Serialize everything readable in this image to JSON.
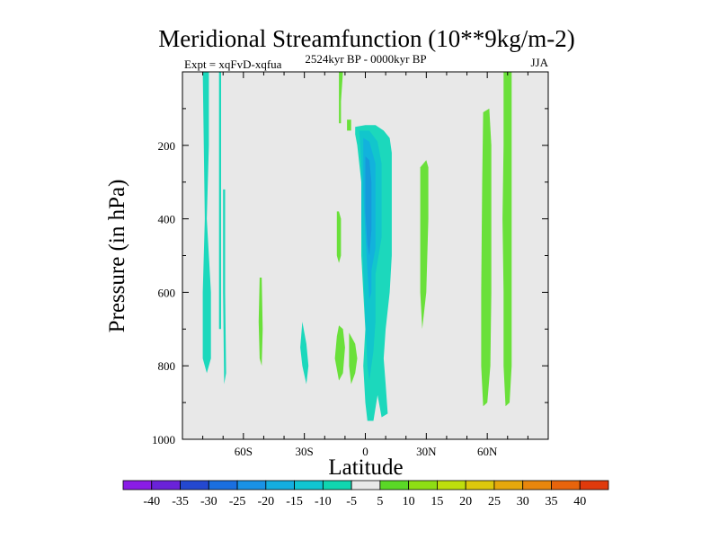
{
  "chart_data": {
    "type": "filled-contour",
    "title": "Meridional Streamfunction (10**9kg/m-2)",
    "left_string": "Expt = xqFvD-xqfua",
    "center_string": "2524kyr BP - 0000kyr BP",
    "right_string": "JJA",
    "xlabel": "Latitude",
    "ylabel": "Pressure (in hPa)",
    "xlim": [
      -90,
      90
    ],
    "ylim": [
      1000,
      0
    ],
    "x_ticks": [
      {
        "value": -60,
        "label": "60S"
      },
      {
        "value": -30,
        "label": "30S"
      },
      {
        "value": 0,
        "label": "0"
      },
      {
        "value": 30,
        "label": "30N"
      },
      {
        "value": 60,
        "label": "60N"
      }
    ],
    "y_ticks": [
      {
        "value": 200,
        "label": "200"
      },
      {
        "value": 400,
        "label": "400"
      },
      {
        "value": 600,
        "label": "600"
      },
      {
        "value": 800,
        "label": "800"
      },
      {
        "value": 1000,
        "label": "1000"
      }
    ],
    "background_color": "#e8e8e8",
    "contour_regions": [
      {
        "name": "sh-polar-tower",
        "level": -5,
        "points": [
          [
            -80,
            0
          ],
          [
            -77,
            0
          ],
          [
            -77,
            200
          ],
          [
            -78,
            400
          ],
          [
            -76,
            600
          ],
          [
            -76,
            780
          ],
          [
            -78,
            820
          ],
          [
            -80,
            780
          ],
          [
            -80,
            600
          ],
          [
            -79,
            400
          ]
        ]
      },
      {
        "name": "sh-polar-strip",
        "level": -5,
        "points": [
          [
            -72,
            0
          ],
          [
            -71,
            0
          ],
          [
            -71,
            200
          ],
          [
            -71,
            400
          ],
          [
            -71,
            700
          ],
          [
            -72,
            700
          ],
          [
            -72,
            400
          ],
          [
            -72,
            200
          ]
        ]
      },
      {
        "name": "sh-strip-b",
        "level": -5,
        "points": [
          [
            -70,
            320
          ],
          [
            -69,
            320
          ],
          [
            -69,
            600
          ],
          [
            -68.5,
            820
          ],
          [
            -69.5,
            850
          ],
          [
            -70,
            600
          ]
        ]
      },
      {
        "name": "sh-small-positive",
        "level": 5,
        "points": [
          [
            -52,
            560
          ],
          [
            -51,
            560
          ],
          [
            -50.5,
            700
          ],
          [
            -51,
            800
          ],
          [
            -52,
            780
          ],
          [
            -52.5,
            680
          ]
        ]
      },
      {
        "name": "sh-30s-cell",
        "level": -5,
        "points": [
          [
            -31,
            680
          ],
          [
            -29,
            740
          ],
          [
            -28,
            800
          ],
          [
            -29,
            850
          ],
          [
            -31,
            800
          ],
          [
            -32,
            750
          ]
        ]
      },
      {
        "name": "nh-pos-upper",
        "level": 5,
        "points": [
          [
            -13,
            0
          ],
          [
            -11,
            0
          ],
          [
            -12,
            80
          ],
          [
            -12,
            140
          ],
          [
            -13,
            140
          ],
          [
            -13,
            60
          ]
        ]
      },
      {
        "name": "nh-pos-small",
        "level": 5,
        "points": [
          [
            -9,
            130
          ],
          [
            -7,
            130
          ],
          [
            -7,
            160
          ],
          [
            -9,
            160
          ]
        ]
      },
      {
        "name": "nh-pos-mid",
        "level": 5,
        "points": [
          [
            -14,
            380
          ],
          [
            -13,
            380
          ],
          [
            -12,
            400
          ],
          [
            -12,
            500
          ],
          [
            -13,
            520
          ],
          [
            -14,
            500
          ]
        ]
      },
      {
        "name": "nh-pos-lower-a",
        "level": 5,
        "points": [
          [
            -13,
            690
          ],
          [
            -11,
            700
          ],
          [
            -10,
            750
          ],
          [
            -11,
            820
          ],
          [
            -13,
            840
          ],
          [
            -15,
            780
          ],
          [
            -14,
            720
          ]
        ]
      },
      {
        "name": "nh-pos-lower-b",
        "level": 5,
        "points": [
          [
            -8,
            710
          ],
          [
            -5,
            740
          ],
          [
            -4,
            780
          ],
          [
            -5,
            820
          ],
          [
            -7,
            850
          ],
          [
            -8,
            800
          ]
        ]
      },
      {
        "name": "eq-cell-outer",
        "level": -5,
        "points": [
          [
            -5,
            150
          ],
          [
            0,
            145
          ],
          [
            5,
            145
          ],
          [
            9,
            160
          ],
          [
            12,
            180
          ],
          [
            13,
            220
          ],
          [
            13,
            500
          ],
          [
            12,
            600
          ],
          [
            10,
            700
          ],
          [
            9,
            780
          ],
          [
            10,
            850
          ],
          [
            11,
            930
          ],
          [
            8,
            940
          ],
          [
            6,
            880
          ],
          [
            4,
            950
          ],
          [
            1,
            950
          ],
          [
            0,
            900
          ],
          [
            -1,
            800
          ],
          [
            0,
            700
          ],
          [
            -1,
            600
          ],
          [
            -2,
            500
          ],
          [
            -2,
            300
          ],
          [
            -4,
            200
          ],
          [
            -5,
            170
          ]
        ]
      },
      {
        "name": "eq-cell-mid",
        "level": -10,
        "points": [
          [
            -3,
            160
          ],
          [
            2,
            160
          ],
          [
            6,
            190
          ],
          [
            8,
            250
          ],
          [
            8,
            450
          ],
          [
            5,
            550
          ],
          [
            5,
            680
          ],
          [
            4,
            760
          ],
          [
            2,
            840
          ],
          [
            1,
            800
          ],
          [
            0,
            680
          ],
          [
            -1,
            540
          ],
          [
            -2,
            400
          ],
          [
            -2,
            250
          ]
        ]
      },
      {
        "name": "eq-cell-inner",
        "level": -15,
        "points": [
          [
            -1,
            180
          ],
          [
            2,
            190
          ],
          [
            5,
            250
          ],
          [
            5,
            480
          ],
          [
            3,
            540
          ],
          [
            3,
            600
          ],
          [
            2,
            620
          ],
          [
            1,
            540
          ],
          [
            0,
            440
          ],
          [
            -1,
            320
          ]
        ]
      },
      {
        "name": "eq-cell-core",
        "level": -20,
        "points": [
          [
            0,
            230
          ],
          [
            2,
            240
          ],
          [
            3,
            300
          ],
          [
            3,
            430
          ],
          [
            2,
            500
          ],
          [
            1,
            470
          ],
          [
            0,
            380
          ],
          [
            0,
            300
          ]
        ]
      },
      {
        "name": "nh-30n-cell",
        "level": 5,
        "points": [
          [
            27,
            260
          ],
          [
            30,
            240
          ],
          [
            31,
            260
          ],
          [
            31,
            400
          ],
          [
            30,
            600
          ],
          [
            28,
            700
          ],
          [
            27,
            600
          ],
          [
            27,
            400
          ]
        ]
      },
      {
        "name": "nh-60n-band",
        "level": 5,
        "points": [
          [
            58,
            110
          ],
          [
            61,
            100
          ],
          [
            62,
            200
          ],
          [
            62,
            600
          ],
          [
            61.5,
            800
          ],
          [
            60,
            900
          ],
          [
            58,
            910
          ],
          [
            57,
            800
          ],
          [
            57,
            600
          ],
          [
            57.5,
            300
          ]
        ]
      },
      {
        "name": "nh-70n-band",
        "level": 5,
        "points": [
          [
            68,
            0
          ],
          [
            72,
            0
          ],
          [
            72,
            200
          ],
          [
            72,
            600
          ],
          [
            72,
            800
          ],
          [
            71,
            900
          ],
          [
            69,
            910
          ],
          [
            68,
            800
          ],
          [
            68,
            600
          ],
          [
            67.5,
            400
          ],
          [
            68,
            200
          ]
        ]
      }
    ],
    "colorbar": {
      "labels": [
        "-40",
        "-35",
        "-30",
        "-25",
        "-20",
        "-15",
        "-10",
        "-5",
        "5",
        "10",
        "15",
        "20",
        "25",
        "30",
        "35",
        "40"
      ],
      "colors": [
        "#8a1ce6",
        "#6a22d8",
        "#2448d0",
        "#1a6fe0",
        "#1992e6",
        "#14aee0",
        "#10c5d2",
        "#10d6b0",
        "#e8e8e8",
        "#5ad826",
        "#8ede14",
        "#bede0c",
        "#dcc80c",
        "#e6a80c",
        "#e8860c",
        "#e8640c",
        "#e03a0c"
      ]
    },
    "palette": {
      "-20": "#169adb",
      "-15": "#12b2dc",
      "-10": "#12c6cc",
      "-5": "#1cd8bc",
      "5": "#6ae03a"
    }
  }
}
